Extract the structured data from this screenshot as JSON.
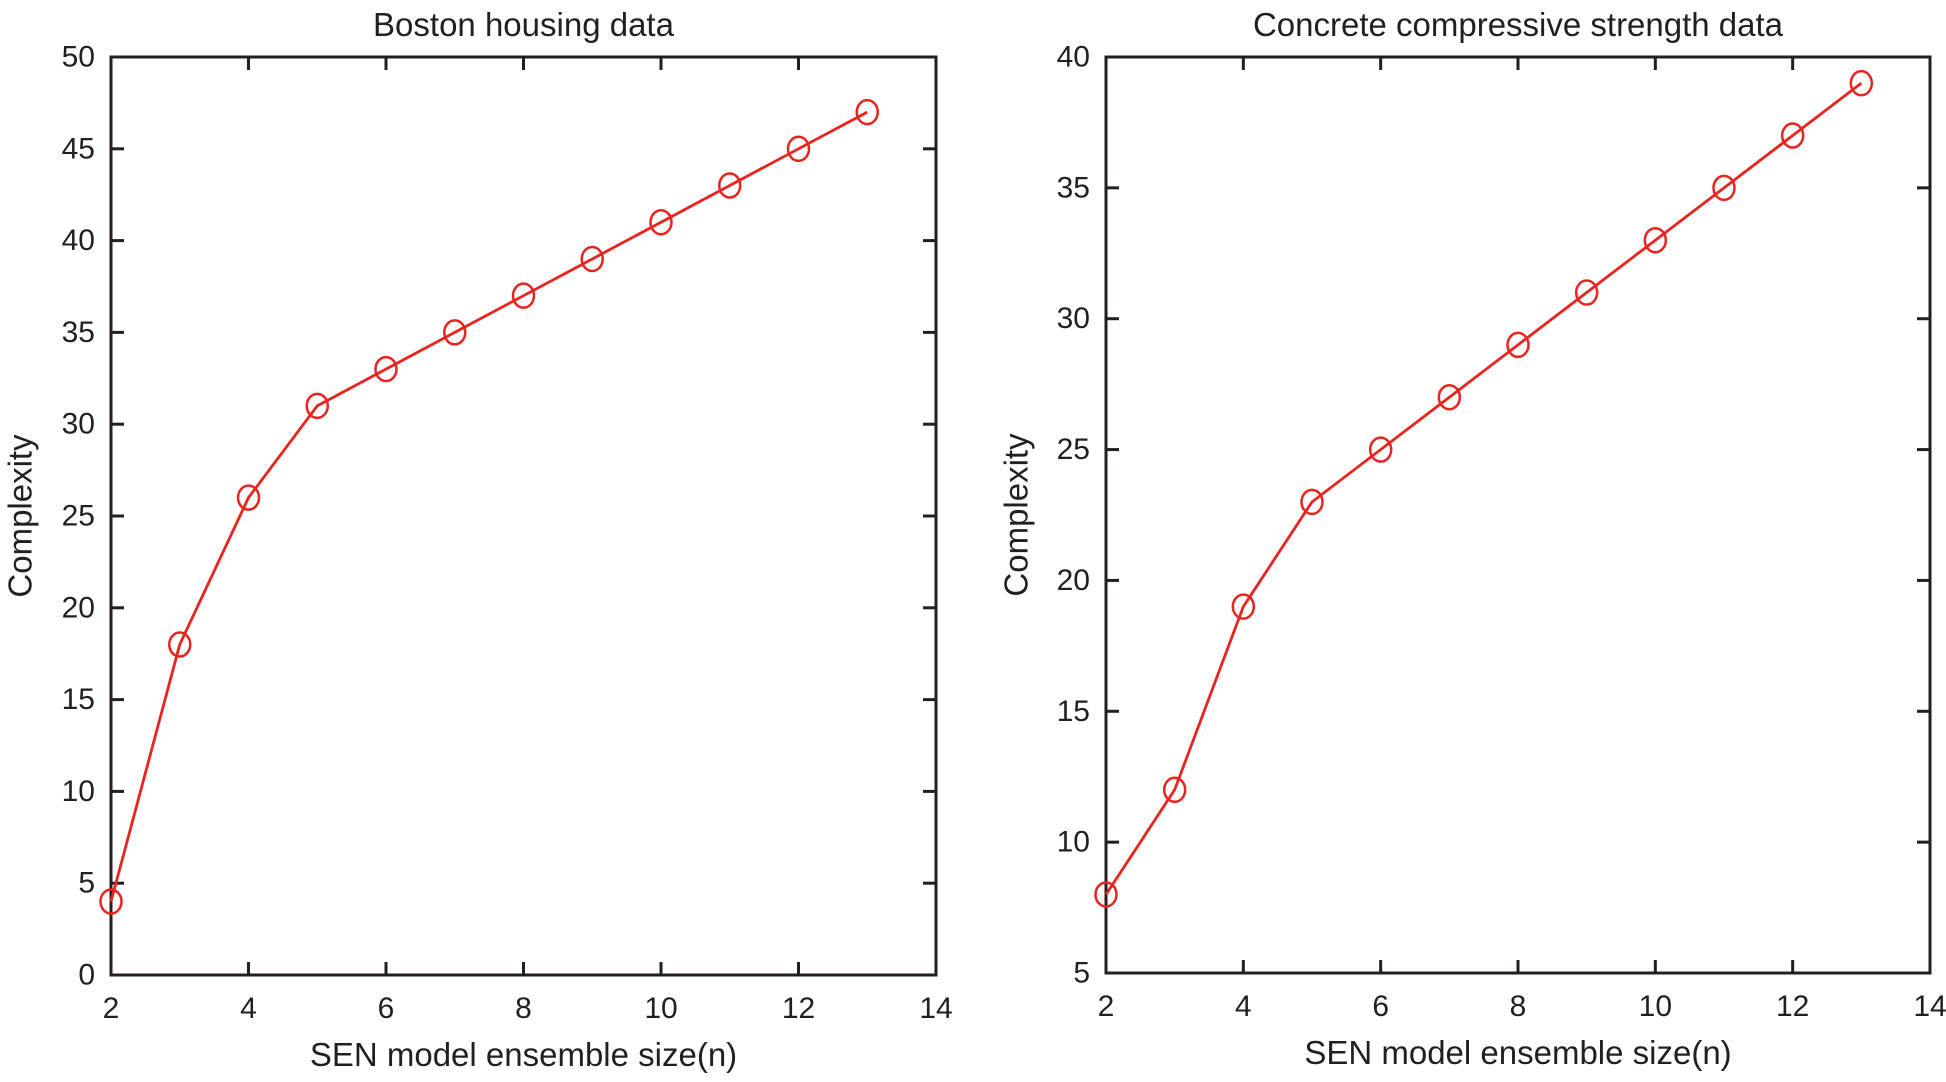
{
  "figure": {
    "background": "#ffffff",
    "axis_color": "#231f20",
    "series_color": "#e8241f"
  },
  "chart_data": [
    {
      "type": "line",
      "title": "Boston housing data",
      "xlabel": "SEN model ensemble size(n)",
      "ylabel": "Complexity",
      "xlim": [
        2,
        14
      ],
      "ylim": [
        0,
        50
      ],
      "x_ticks": [
        2,
        4,
        6,
        8,
        10,
        12,
        14
      ],
      "y_ticks": [
        0,
        5,
        10,
        15,
        20,
        25,
        30,
        35,
        40,
        45,
        50
      ],
      "x": [
        2,
        3,
        4,
        5,
        6,
        7,
        8,
        9,
        10,
        11,
        12,
        13
      ],
      "y": [
        4,
        18,
        26,
        31,
        33,
        35,
        37,
        39,
        41,
        43,
        45,
        47
      ],
      "marker": "open-circle",
      "line_color": "#e8241f",
      "grid": false
    },
    {
      "type": "line",
      "title": "Concrete compressive strength data",
      "xlabel": "SEN model ensemble size(n)",
      "ylabel": "Complexity",
      "xlim": [
        2,
        14
      ],
      "ylim": [
        5,
        40
      ],
      "x_ticks": [
        2,
        4,
        6,
        8,
        10,
        12,
        14
      ],
      "y_ticks": [
        5,
        10,
        15,
        20,
        25,
        30,
        35,
        40
      ],
      "x": [
        2,
        3,
        4,
        5,
        6,
        7,
        8,
        9,
        10,
        11,
        12,
        13
      ],
      "y": [
        8,
        12,
        19,
        23,
        25,
        27,
        29,
        31,
        33,
        35,
        37,
        39
      ],
      "marker": "open-circle",
      "line_color": "#e8241f",
      "grid": false
    }
  ]
}
